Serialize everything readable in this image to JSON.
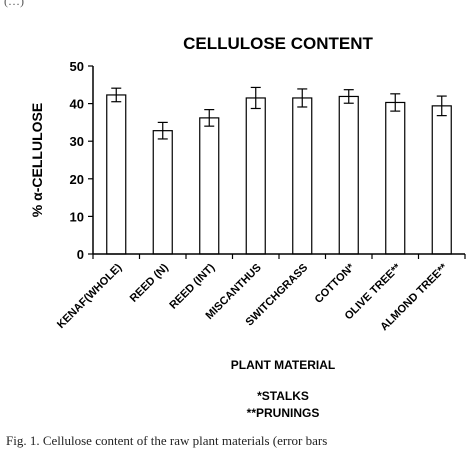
{
  "top_text": "(…)",
  "caption": "Fig. 1. Cellulose content of the raw plant materials (error bars",
  "chart_data": {
    "type": "bar",
    "title": "CELLULOSE CONTENT",
    "xlabel": "PLANT MATERIAL",
    "ylabel": "% α-CELLULOSE",
    "ylim": [
      0,
      50
    ],
    "yticks": [
      0,
      10,
      20,
      30,
      40,
      50
    ],
    "categories": [
      "KENAF(WHOLE)",
      "REED (N)",
      "REED (INT)",
      "MISCANTHUS",
      "SWITCHGRASS",
      "COTTON*",
      "OLIVE TREE**",
      "ALMOND TREE**"
    ],
    "values": [
      42.3,
      32.8,
      36.2,
      41.5,
      41.5,
      41.9,
      40.3,
      39.4
    ],
    "errors": [
      1.8,
      2.2,
      2.2,
      2.8,
      2.4,
      1.8,
      2.3,
      2.6
    ],
    "bar_fill": "#ffffff",
    "bar_stroke": "#000000",
    "grid": false,
    "notes": [
      "*STALKS",
      "**PRUNINGS"
    ]
  }
}
